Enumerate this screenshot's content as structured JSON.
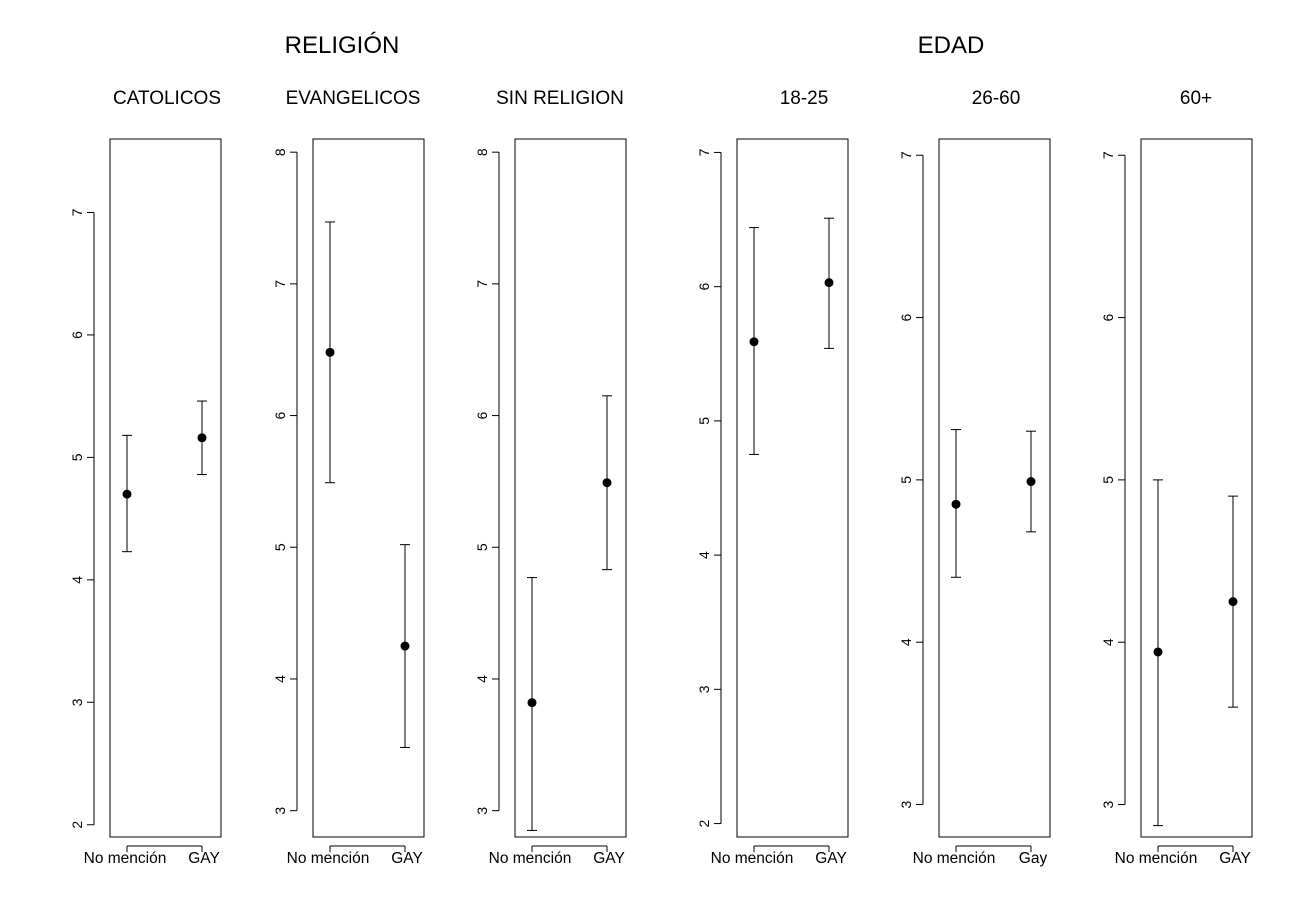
{
  "group_titles": [
    "RELIGIÓN",
    "EDAD"
  ],
  "chart_data": [
    {
      "type": "scatter",
      "title": "CATOLICOS",
      "categories": [
        "No mención",
        "GAY"
      ],
      "values": [
        4.7,
        5.16
      ],
      "lower": [
        4.23,
        4.86
      ],
      "upper": [
        5.18,
        5.46
      ],
      "ylim": [
        1.9,
        7.6
      ],
      "yticks": [
        2,
        3,
        4,
        5,
        6,
        7
      ],
      "grid": false
    },
    {
      "type": "scatter",
      "title": "EVANGELICOS",
      "categories": [
        "No mención",
        "GAY"
      ],
      "values": [
        6.48,
        4.25
      ],
      "lower": [
        5.49,
        3.48
      ],
      "upper": [
        7.47,
        5.02
      ],
      "ylim": [
        2.8,
        8.1
      ],
      "yticks": [
        3,
        4,
        5,
        6,
        7,
        8
      ],
      "grid": false
    },
    {
      "type": "scatter",
      "title": "SIN RELIGION",
      "categories": [
        "No mención",
        "GAY"
      ],
      "values": [
        3.82,
        5.49
      ],
      "lower": [
        2.85,
        4.83
      ],
      "upper": [
        4.77,
        6.15
      ],
      "ylim": [
        2.8,
        8.1
      ],
      "yticks": [
        3,
        4,
        5,
        6,
        7,
        8
      ],
      "grid": false
    },
    {
      "type": "scatter",
      "title": "18-25",
      "categories": [
        "No mención",
        "GAY"
      ],
      "values": [
        5.59,
        6.03
      ],
      "lower": [
        4.75,
        5.54
      ],
      "upper": [
        6.44,
        6.51
      ],
      "ylim": [
        1.9,
        7.1
      ],
      "yticks": [
        2,
        3,
        4,
        5,
        6,
        7
      ],
      "grid": false
    },
    {
      "type": "scatter",
      "title": "26-60",
      "categories": [
        "No mención",
        "Gay"
      ],
      "values": [
        4.85,
        4.99
      ],
      "lower": [
        4.4,
        4.68
      ],
      "upper": [
        5.31,
        5.3
      ],
      "ylim": [
        2.8,
        7.1
      ],
      "yticks": [
        3,
        4,
        5,
        6,
        7
      ],
      "grid": false
    },
    {
      "type": "scatter",
      "title": "60+",
      "categories": [
        "No mención",
        "GAY"
      ],
      "values": [
        3.94,
        4.25
      ],
      "lower": [
        2.87,
        3.6
      ],
      "upper": [
        5.0,
        4.9
      ],
      "ylim": [
        2.8,
        7.1
      ],
      "yticks": [
        3,
        4,
        5,
        6,
        7
      ],
      "grid": false
    }
  ]
}
